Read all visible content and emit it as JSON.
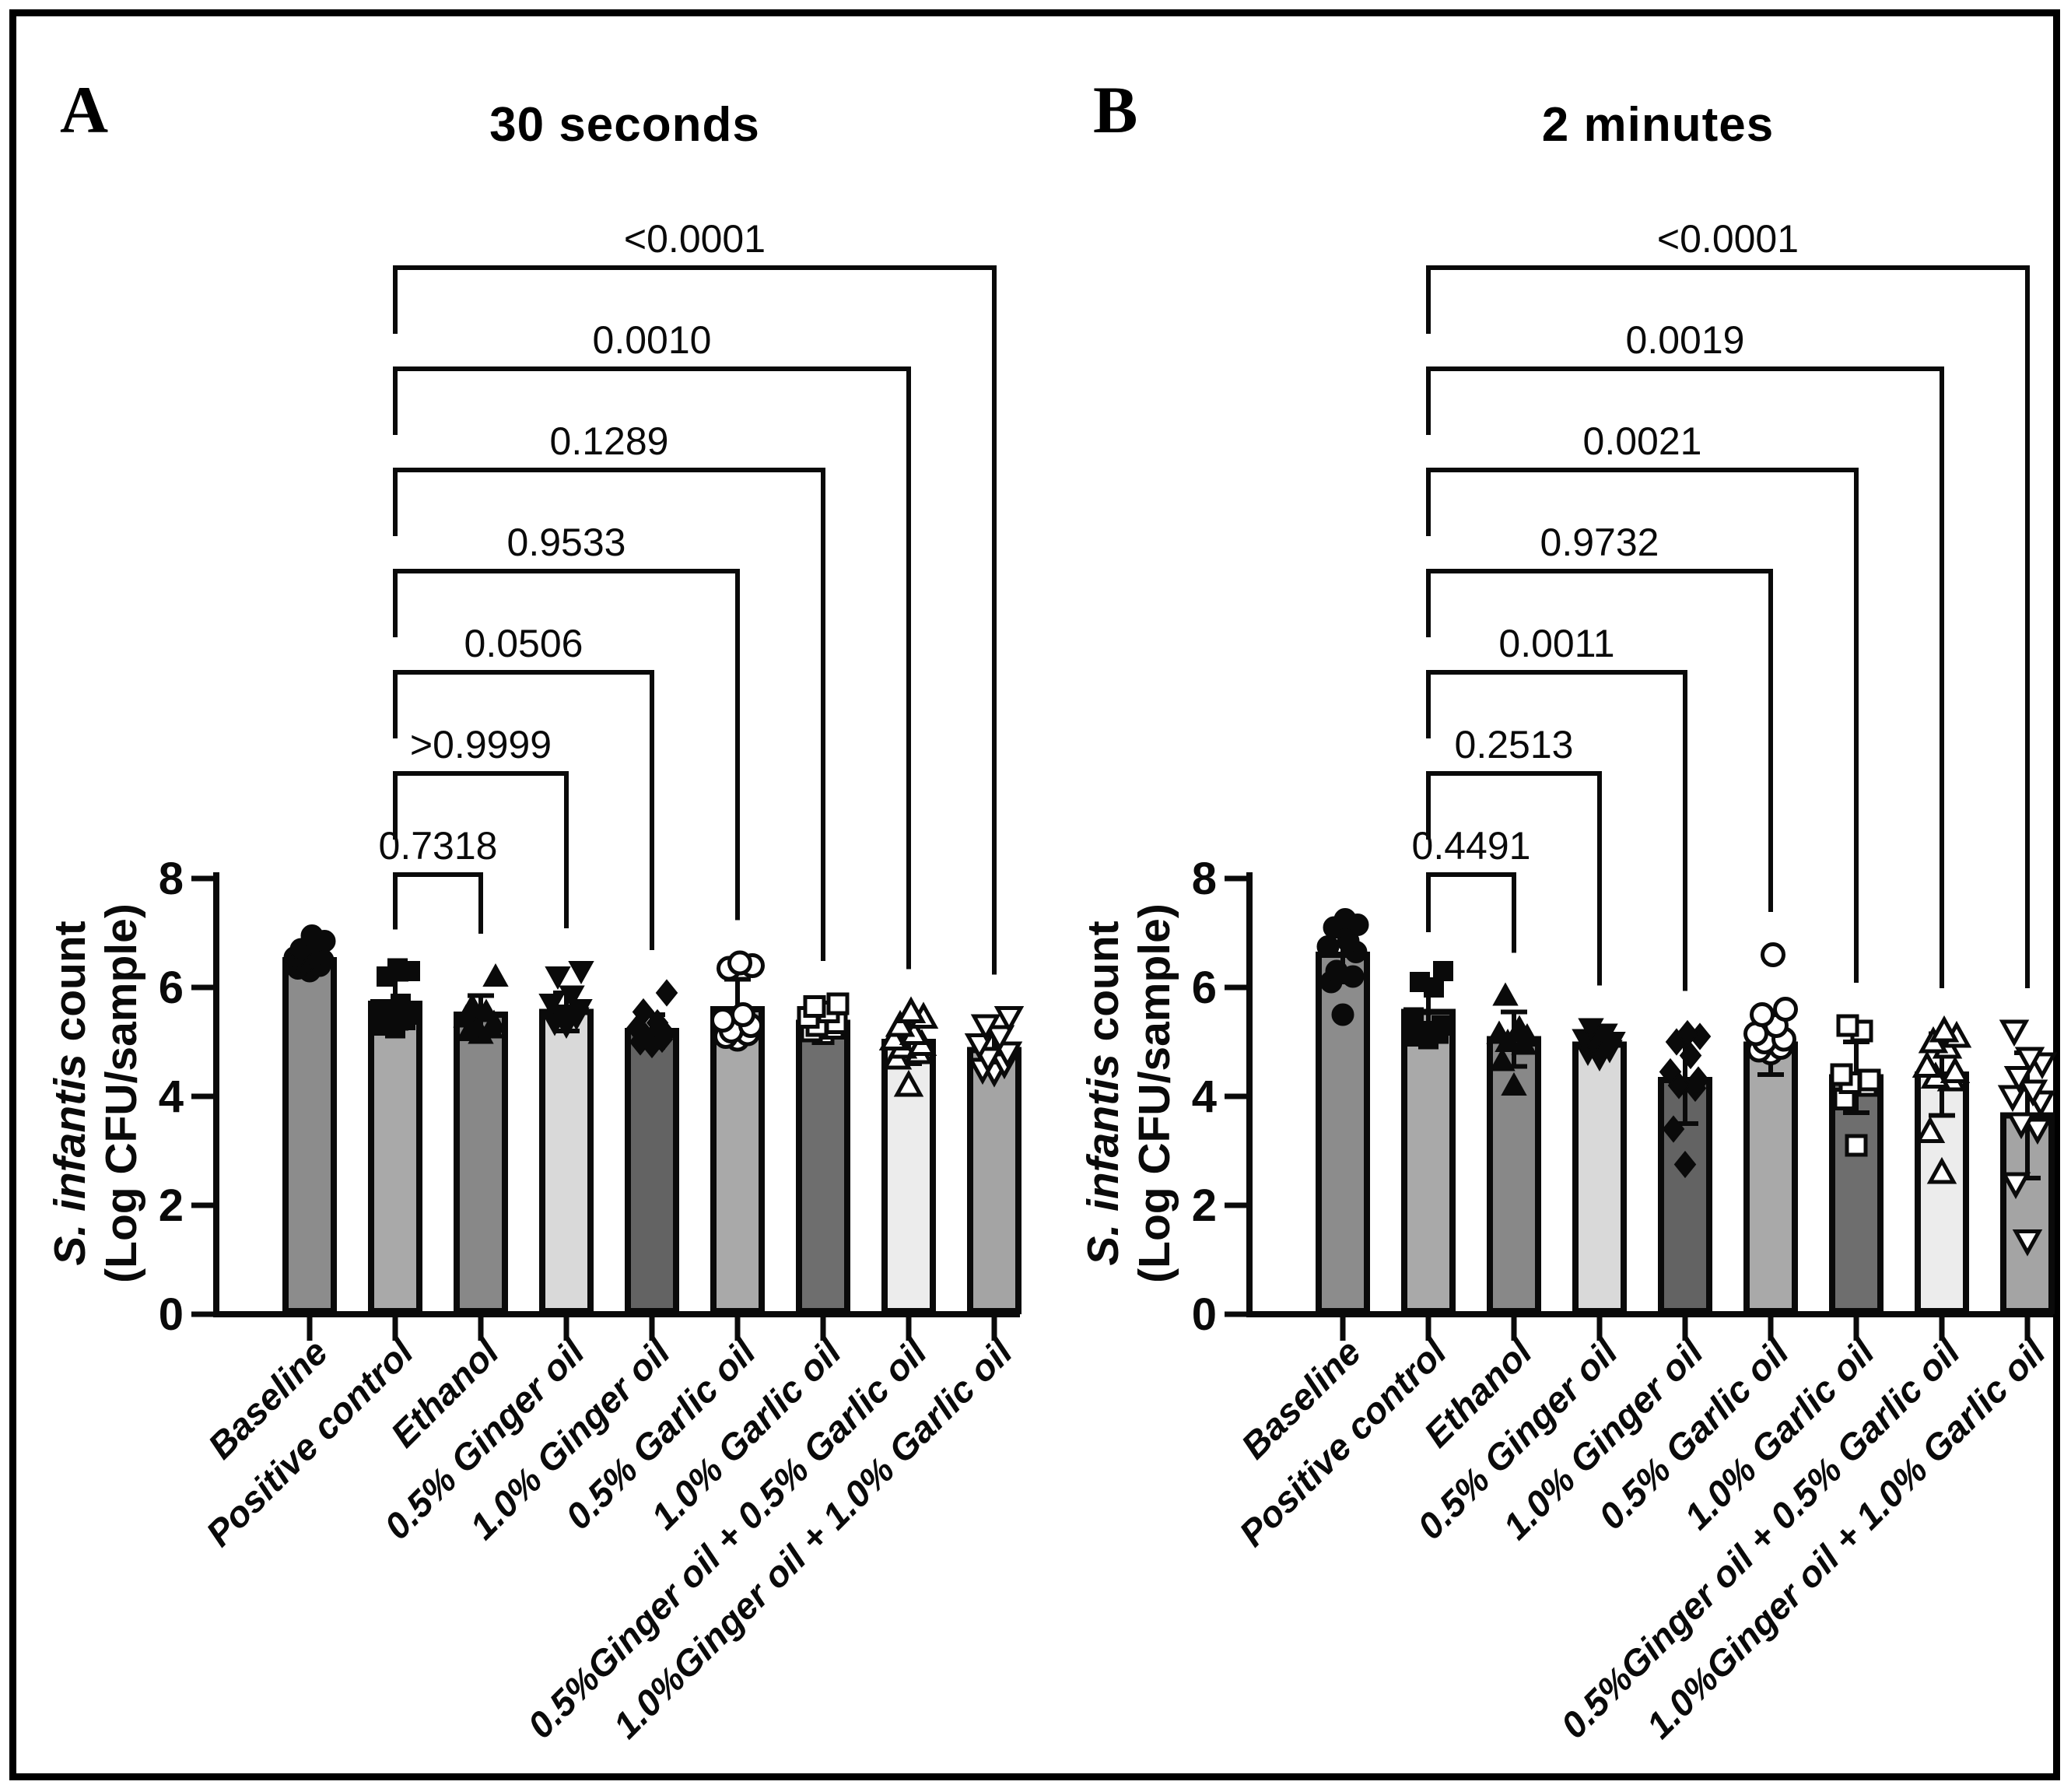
{
  "figure": {
    "background": "#ffffff",
    "border_color": "#000000",
    "ink_color": "#0a0a0a"
  },
  "chart_data": [
    {
      "panel_label": "A",
      "type": "bar",
      "title": "30 seconds",
      "ylabel_line1_italic": "S. infantis",
      "ylabel_line1_rest": " count",
      "ylabel_line2": "(Log CFU/sample)",
      "ylim": [
        0,
        8
      ],
      "yticks": [
        0,
        2,
        4,
        6,
        8
      ],
      "grid": false,
      "legend": "none",
      "categories": [
        "Baseline",
        "Positive control",
        "Ethanol",
        "0.5% Ginger oil",
        "1.0% Ginger oil",
        "0.5% Garlic oil",
        "1.0% Garlic oil",
        "0.5%Ginger oil + 0.5% Garlic oil",
        "1.0%Ginger oil + 1.0% Garlic oil"
      ],
      "bars": [
        {
          "category": "Baseline",
          "mean": 6.5,
          "sd": 0.2,
          "fill": "#8c8c8c",
          "marker": "circle-filled",
          "points": [
            6.3,
            6.35,
            6.4,
            6.45,
            6.5,
            6.55,
            6.6,
            6.7,
            6.85,
            6.95
          ]
        },
        {
          "category": "Positive control",
          "mean": 5.7,
          "sd": 0.45,
          "fill": "#a9a9a9",
          "marker": "square-filled",
          "points": [
            5.25,
            5.3,
            5.4,
            5.45,
            5.5,
            5.6,
            5.7,
            6.2,
            6.3,
            6.35
          ]
        },
        {
          "category": "Ethanol",
          "mean": 5.5,
          "sd": 0.35,
          "fill": "#888888",
          "marker": "triangle-up-filled",
          "points": [
            5.15,
            5.2,
            5.25,
            5.3,
            5.35,
            5.45,
            5.55,
            5.65,
            6.2
          ]
        },
        {
          "category": "0.5% Ginger oil",
          "mean": 5.55,
          "sd": 0.35,
          "fill": "#d9d9d9",
          "marker": "triangle-down-filled",
          "points": [
            5.3,
            5.35,
            5.45,
            5.5,
            5.6,
            5.7,
            5.85,
            6.2,
            6.3
          ]
        },
        {
          "category": "1.0% Ginger oil",
          "mean": 5.2,
          "sd": 0.3,
          "fill": "#636363",
          "marker": "diamond-filled",
          "points": [
            4.95,
            5.0,
            5.05,
            5.1,
            5.15,
            5.25,
            5.35,
            5.55,
            5.9
          ]
        },
        {
          "category": "0.5% Garlic oil",
          "mean": 5.6,
          "sd": 0.55,
          "fill": "#a9a9a9",
          "marker": "circle-open",
          "points": [
            5.05,
            5.1,
            5.15,
            5.2,
            5.3,
            5.4,
            5.5,
            6.35,
            6.4,
            6.45
          ]
        },
        {
          "category": "1.0% Garlic oil",
          "mean": 5.35,
          "sd": 0.25,
          "fill": "#6e6e6e",
          "marker": "square-open",
          "points": [
            5.15,
            5.2,
            5.25,
            5.3,
            5.35,
            5.45,
            5.55,
            5.65,
            5.7
          ]
        },
        {
          "category": "0.5%Ginger oil + 0.5% Garlic oil",
          "mean": 5.0,
          "sd": 0.4,
          "fill": "#ececec",
          "marker": "triangle-up-open",
          "points": [
            4.2,
            4.7,
            4.8,
            4.9,
            4.95,
            5.05,
            5.15,
            5.3,
            5.45,
            5.55
          ]
        },
        {
          "category": "1.0%Ginger oil + 1.0% Garlic oil",
          "mean": 4.85,
          "sd": 0.4,
          "fill": "#a4a4a4",
          "marker": "triangle-down-open",
          "points": [
            4.45,
            4.5,
            4.6,
            4.7,
            4.8,
            4.95,
            5.1,
            5.3,
            5.45
          ]
        }
      ],
      "significance_brackets": [
        {
          "p": "0.7318",
          "from": "Positive control",
          "to": "Ethanol"
        },
        {
          "p": ">0.9999",
          "from": "Positive control",
          "to": "0.5% Ginger oil"
        },
        {
          "p": "0.0506",
          "from": "Positive control",
          "to": "1.0% Ginger oil"
        },
        {
          "p": "0.9533",
          "from": "Positive control",
          "to": "0.5% Garlic oil"
        },
        {
          "p": "0.1289",
          "from": "Positive control",
          "to": "1.0% Garlic oil"
        },
        {
          "p": "0.0010",
          "from": "Positive control",
          "to": "0.5%Ginger oil + 0.5% Garlic oil"
        },
        {
          "p": "<0.0001",
          "from": "Positive control",
          "to": "1.0%Ginger oil + 1.0% Garlic oil"
        }
      ]
    },
    {
      "panel_label": "B",
      "type": "bar",
      "title": "2 minutes",
      "ylabel_line1_italic": "S. infantis",
      "ylabel_line1_rest": " count",
      "ylabel_line2": "(Log CFU/sample)",
      "ylim": [
        0,
        8
      ],
      "yticks": [
        0,
        2,
        4,
        6,
        8
      ],
      "grid": false,
      "legend": "none",
      "categories": [
        "Baseline",
        "Positive control",
        "Ethanol",
        "0.5% Ginger oil",
        "1.0% Ginger oil",
        "0.5% Garlic oil",
        "1.0% Garlic oil",
        "0.5%Ginger oil + 0.5% Garlic oil",
        "1.0%Ginger oil + 1.0% Garlic oil"
      ],
      "bars": [
        {
          "category": "Baseline",
          "mean": 6.6,
          "sd": 0.5,
          "fill": "#8c8c8c",
          "marker": "circle-filled",
          "points": [
            5.5,
            6.1,
            6.2,
            6.3,
            6.65,
            6.75,
            6.85,
            7.1,
            7.15,
            7.25
          ]
        },
        {
          "category": "Positive control",
          "mean": 5.55,
          "sd": 0.45,
          "fill": "#a9a9a9",
          "marker": "square-filled",
          "points": [
            5.05,
            5.1,
            5.15,
            5.2,
            5.3,
            5.45,
            6.0,
            6.1,
            6.3
          ]
        },
        {
          "category": "Ethanol",
          "mean": 5.05,
          "sd": 0.5,
          "fill": "#888888",
          "marker": "triangle-up-filled",
          "points": [
            4.2,
            4.65,
            4.95,
            5.0,
            5.1,
            5.15,
            5.25,
            5.85
          ]
        },
        {
          "category": "0.5% Ginger oil",
          "mean": 4.95,
          "sd": 0.2,
          "fill": "#d9d9d9",
          "marker": "triangle-down-filled",
          "points": [
            4.7,
            4.8,
            4.85,
            4.95,
            5.0,
            5.05,
            5.15,
            5.25
          ]
        },
        {
          "category": "1.0% Ginger oil",
          "mean": 4.3,
          "sd": 0.8,
          "fill": "#636363",
          "marker": "diamond-filled",
          "points": [
            2.75,
            3.4,
            4.15,
            4.2,
            4.3,
            4.45,
            4.75,
            5.0,
            5.1,
            5.15
          ]
        },
        {
          "category": "0.5% Garlic oil",
          "mean": 4.95,
          "sd": 0.55,
          "fill": "#a9a9a9",
          "marker": "circle-open",
          "points": [
            4.8,
            4.85,
            4.9,
            5.0,
            5.05,
            5.15,
            5.3,
            5.5,
            5.6,
            6.6
          ]
        },
        {
          "category": "1.0% Garlic oil",
          "mean": 4.35,
          "sd": 0.65,
          "fill": "#6e6e6e",
          "marker": "square-open",
          "points": [
            3.1,
            3.95,
            4.2,
            4.25,
            4.3,
            4.4,
            5.2,
            5.3
          ]
        },
        {
          "category": "0.5%Ginger oil + 0.5% Garlic oil",
          "mean": 4.4,
          "sd": 0.75,
          "fill": "#ececec",
          "marker": "triangle-up-open",
          "points": [
            2.6,
            3.35,
            4.3,
            4.35,
            4.45,
            4.55,
            4.9,
            5.0,
            5.1,
            5.2
          ]
        },
        {
          "category": "1.0%Ginger oil + 1.0% Garlic oil",
          "mean": 3.65,
          "sd": 1.15,
          "fill": "#a4a4a4",
          "marker": "triangle-down-open",
          "points": [
            1.35,
            2.4,
            3.4,
            3.5,
            3.9,
            4.0,
            4.1,
            4.35,
            4.6,
            4.7,
            5.2
          ]
        }
      ],
      "significance_brackets": [
        {
          "p": "0.4491",
          "from": "Positive control",
          "to": "Ethanol"
        },
        {
          "p": "0.2513",
          "from": "Positive control",
          "to": "0.5% Ginger oil"
        },
        {
          "p": "0.0011",
          "from": "Positive control",
          "to": "1.0% Ginger oil"
        },
        {
          "p": "0.9732",
          "from": "Positive control",
          "to": "0.5% Garlic oil"
        },
        {
          "p": "0.0021",
          "from": "Positive control",
          "to": "1.0% Garlic oil"
        },
        {
          "p": "0.0019",
          "from": "Positive control",
          "to": "0.5%Ginger oil + 0.5% Garlic oil"
        },
        {
          "p": "<0.0001",
          "from": "Positive control",
          "to": "1.0%Ginger oil + 1.0% Garlic oil"
        }
      ]
    }
  ]
}
